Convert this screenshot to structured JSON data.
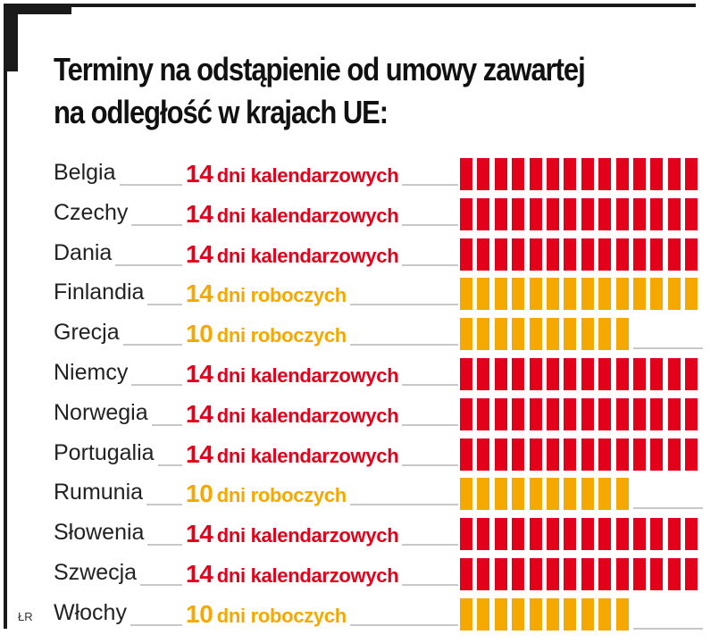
{
  "title": "Terminy na odstąpienie od umowy zawartej na odległość w krajach UE:",
  "credit": "ŁR",
  "colors": {
    "kalendarzowych": "#e2001a",
    "roboczych": "#f5a800"
  },
  "chart_data": {
    "type": "bar",
    "categories": [
      "Belgia",
      "Czechy",
      "Dania",
      "Finlandia",
      "Grecja",
      "Niemcy",
      "Norwegia",
      "Portugalia",
      "Rumunia",
      "Słowenia",
      "Szwecja",
      "Włochy"
    ],
    "values": [
      14,
      14,
      14,
      14,
      10,
      14,
      14,
      14,
      10,
      14,
      14,
      10
    ],
    "day_type": [
      "kalendarzowych",
      "kalendarzowych",
      "kalendarzowych",
      "roboczych",
      "roboczych",
      "kalendarzowych",
      "kalendarzowych",
      "kalendarzowych",
      "roboczych",
      "kalendarzowych",
      "kalendarzowych",
      "roboczych"
    ],
    "labels": [
      {
        "num": "14",
        "unit": "dni kalendarzowych"
      },
      {
        "num": "14",
        "unit": "dni kalendarzowych"
      },
      {
        "num": "14",
        "unit": "dni kalendarzowych"
      },
      {
        "num": "14",
        "unit": "dni roboczych"
      },
      {
        "num": "10",
        "unit": "dni roboczych"
      },
      {
        "num": "14",
        "unit": "dni kalendarzowych"
      },
      {
        "num": "14",
        "unit": "dni kalendarzowych"
      },
      {
        "num": "14",
        "unit": "dni kalendarzowych"
      },
      {
        "num": "10",
        "unit": "dni roboczych"
      },
      {
        "num": "14",
        "unit": "dni kalendarzowych"
      },
      {
        "num": "14",
        "unit": "dni kalendarzowych"
      },
      {
        "num": "10",
        "unit": "dni roboczych"
      }
    ],
    "max_value": 14
  }
}
